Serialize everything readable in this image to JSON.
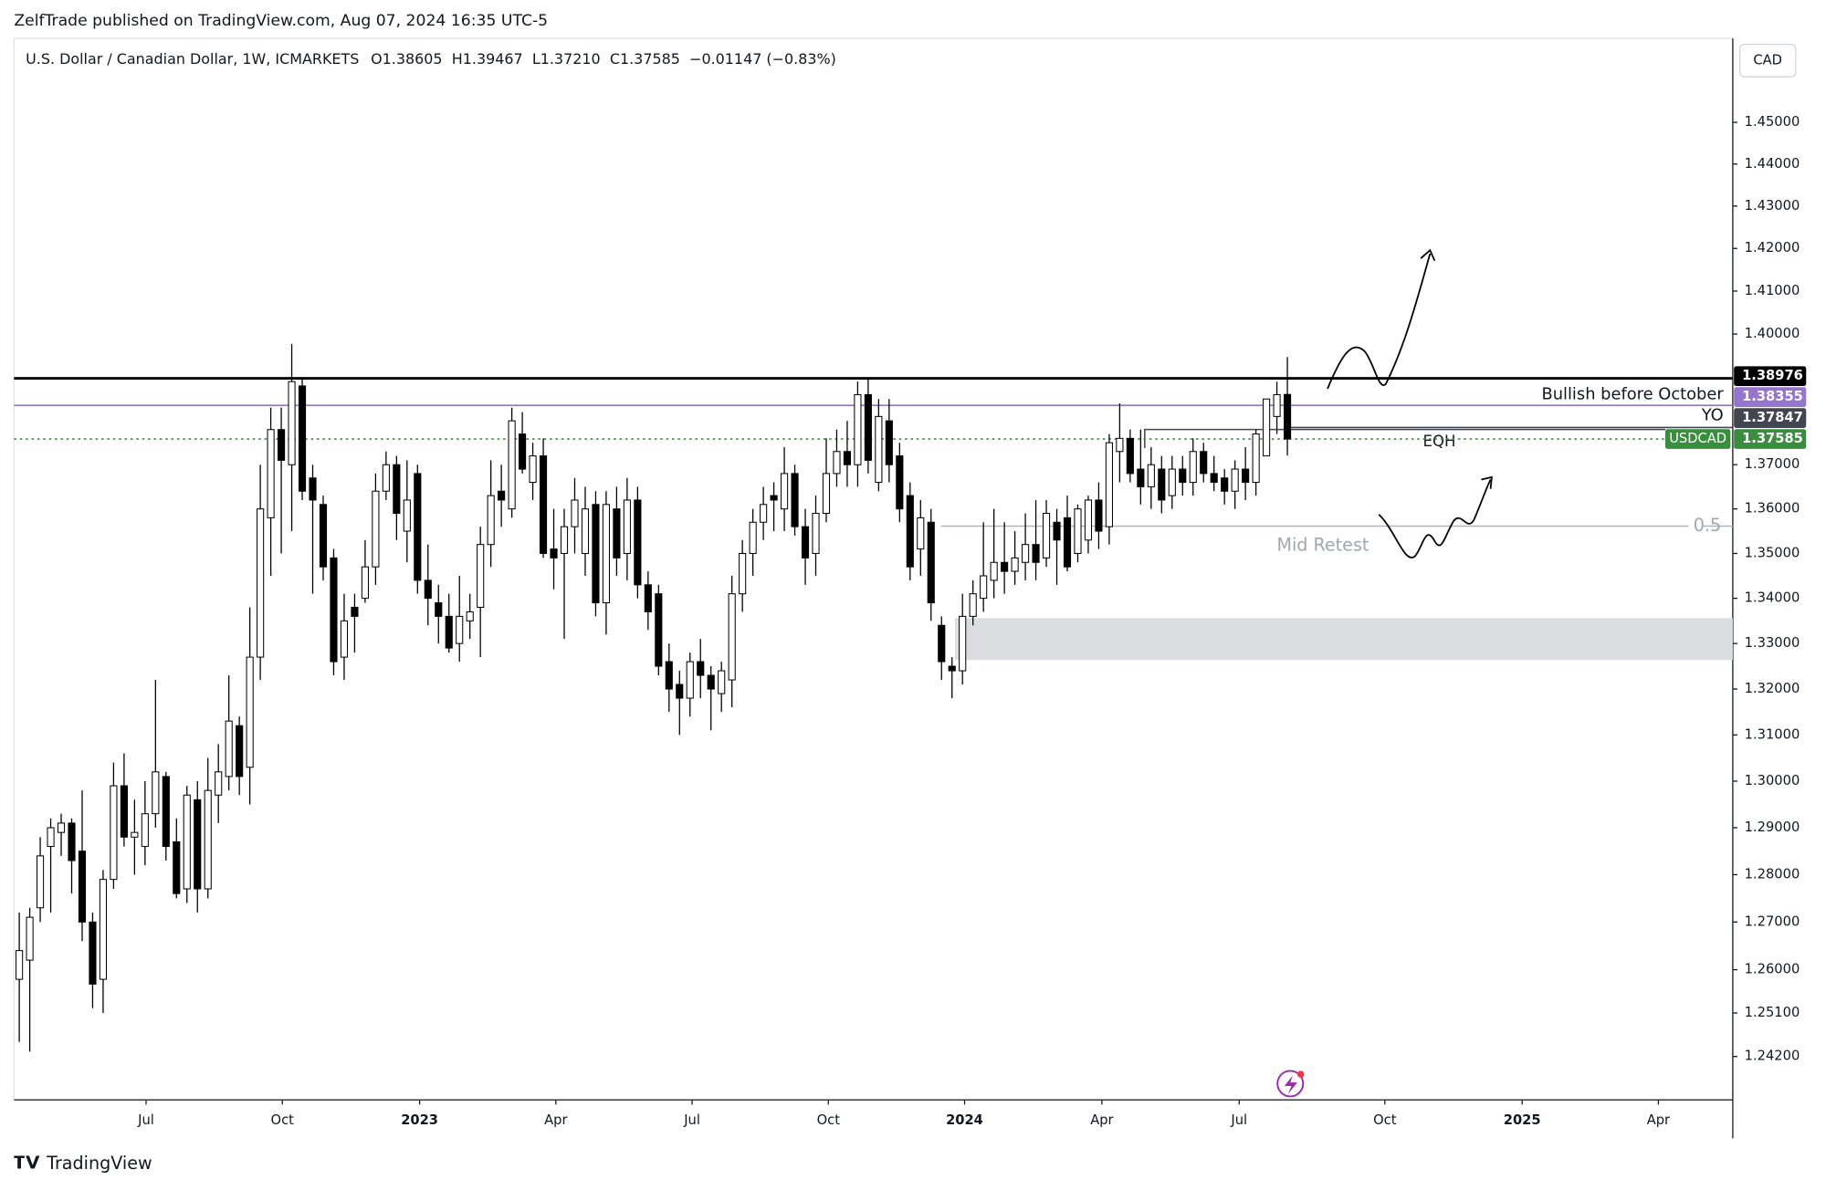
{
  "header": {
    "publisher": "ZelfTrade published on TradingView.com, Aug 07, 2024 16:35 UTC-5",
    "brand": "TradingView"
  },
  "chart_data": {
    "type": "candlestick",
    "legend": {
      "symbol": "U.S. Dollar / Canadian Dollar, 1W, ICMARKETS",
      "open": "O1.38605",
      "high": "H1.39467",
      "low": "L1.37210",
      "close": "C1.37585",
      "change": "−0.01147 (−0.83%)"
    },
    "currency": "CAD",
    "up_color": "#ffffff",
    "down_color": "#000000",
    "log_scale": true,
    "open": [
      1.258,
      1.262,
      1.273,
      1.286,
      1.289,
      1.291,
      1.285,
      1.27,
      1.258,
      1.279,
      1.299,
      1.288,
      1.286,
      1.293,
      1.301,
      1.287,
      1.277,
      1.296,
      1.277,
      1.297,
      1.301,
      1.312,
      1.303,
      1.327,
      1.358,
      1.378,
      1.37,
      1.388,
      1.367,
      1.361,
      1.349,
      1.327,
      1.338,
      1.34,
      1.347,
      1.364,
      1.37,
      1.355,
      1.368,
      1.344,
      1.339,
      1.336,
      1.33,
      1.335,
      1.338,
      1.352,
      1.364,
      1.36,
      1.377,
      1.366,
      1.372,
      1.351,
      1.35,
      1.356,
      1.35,
      1.361,
      1.339,
      1.36,
      1.35,
      1.362,
      1.343,
      1.341,
      1.326,
      1.321,
      1.318,
      1.326,
      1.323,
      1.319,
      1.322,
      1.341,
      1.35,
      1.357,
      1.363,
      1.36,
      1.368,
      1.356,
      1.35,
      1.359,
      1.368,
      1.373,
      1.37,
      1.386,
      1.366,
      1.38,
      1.372,
      1.363,
      1.351,
      1.357,
      1.334,
      1.325,
      1.324,
      1.336,
      1.34,
      1.344,
      1.348,
      1.346,
      1.348,
      1.352,
      1.349,
      1.357,
      1.358,
      1.35,
      1.353,
      1.362,
      1.356,
      1.373,
      1.376,
      1.369,
      1.365,
      1.369,
      1.363,
      1.369,
      1.366,
      1.373,
      1.368,
      1.367,
      1.364,
      1.369,
      1.366,
      1.372,
      1.381,
      1.38605
    ],
    "high": [
      1.272,
      1.273,
      1.288,
      1.292,
      1.293,
      1.292,
      1.298,
      1.272,
      1.281,
      1.304,
      1.306,
      1.296,
      1.3,
      1.322,
      1.302,
      1.292,
      1.299,
      1.3,
      1.305,
      1.308,
      1.323,
      1.314,
      1.338,
      1.37,
      1.383,
      1.383,
      1.3977,
      1.39,
      1.37,
      1.363,
      1.351,
      1.341,
      1.341,
      1.353,
      1.368,
      1.373,
      1.372,
      1.371,
      1.37,
      1.352,
      1.343,
      1.341,
      1.345,
      1.341,
      1.356,
      1.371,
      1.37,
      1.383,
      1.382,
      1.375,
      1.376,
      1.36,
      1.36,
      1.367,
      1.365,
      1.364,
      1.364,
      1.365,
      1.367,
      1.365,
      1.346,
      1.343,
      1.33,
      1.324,
      1.328,
      1.331,
      1.325,
      1.326,
      1.345,
      1.353,
      1.36,
      1.365,
      1.366,
      1.374,
      1.37,
      1.36,
      1.363,
      1.376,
      1.378,
      1.38,
      1.389,
      1.3898,
      1.385,
      1.385,
      1.375,
      1.366,
      1.362,
      1.36,
      1.336,
      1.327,
      1.341,
      1.344,
      1.357,
      1.36,
      1.357,
      1.355,
      1.359,
      1.362,
      1.362,
      1.36,
      1.363,
      1.361,
      1.363,
      1.366,
      1.377,
      1.384,
      1.378,
      1.378,
      1.374,
      1.372,
      1.372,
      1.372,
      1.376,
      1.375,
      1.372,
      1.369,
      1.371,
      1.374,
      1.378,
      1.385,
      1.389,
      1.39467
    ],
    "low": [
      1.245,
      1.243,
      1.27,
      1.272,
      1.284,
      1.276,
      1.266,
      1.252,
      1.251,
      1.277,
      1.286,
      1.28,
      1.282,
      1.29,
      1.283,
      1.275,
      1.274,
      1.272,
      1.275,
      1.291,
      1.298,
      1.297,
      1.295,
      1.322,
      1.345,
      1.35,
      1.355,
      1.362,
      1.341,
      1.344,
      1.323,
      1.322,
      1.328,
      1.339,
      1.343,
      1.362,
      1.353,
      1.348,
      1.341,
      1.334,
      1.33,
      1.328,
      1.326,
      1.331,
      1.327,
      1.347,
      1.356,
      1.358,
      1.368,
      1.362,
      1.349,
      1.342,
      1.331,
      1.35,
      1.345,
      1.336,
      1.332,
      1.345,
      1.344,
      1.34,
      1.333,
      1.323,
      1.315,
      1.31,
      1.314,
      1.318,
      1.311,
      1.315,
      1.316,
      1.337,
      1.345,
      1.353,
      1.355,
      1.355,
      1.354,
      1.343,
      1.345,
      1.357,
      1.365,
      1.365,
      1.365,
      1.368,
      1.364,
      1.366,
      1.357,
      1.344,
      1.345,
      1.335,
      1.322,
      1.318,
      1.321,
      1.334,
      1.337,
      1.34,
      1.341,
      1.343,
      1.344,
      1.344,
      1.347,
      1.343,
      1.346,
      1.348,
      1.35,
      1.351,
      1.352,
      1.366,
      1.366,
      1.361,
      1.36,
      1.359,
      1.36,
      1.363,
      1.363,
      1.366,
      1.364,
      1.361,
      1.36,
      1.362,
      1.363,
      1.373,
      1.377,
      1.3721
    ],
    "close": [
      1.264,
      1.271,
      1.284,
      1.29,
      1.291,
      1.283,
      1.27,
      1.257,
      1.279,
      1.299,
      1.288,
      1.289,
      1.293,
      1.302,
      1.286,
      1.276,
      1.297,
      1.277,
      1.298,
      1.302,
      1.313,
      1.301,
      1.327,
      1.36,
      1.378,
      1.371,
      1.389,
      1.364,
      1.362,
      1.347,
      1.326,
      1.335,
      1.336,
      1.347,
      1.364,
      1.37,
      1.359,
      1.362,
      1.344,
      1.34,
      1.336,
      1.329,
      1.336,
      1.337,
      1.352,
      1.363,
      1.362,
      1.38,
      1.369,
      1.372,
      1.35,
      1.349,
      1.356,
      1.362,
      1.36,
      1.339,
      1.361,
      1.349,
      1.362,
      1.343,
      1.337,
      1.325,
      1.32,
      1.318,
      1.326,
      1.323,
      1.32,
      1.324,
      1.341,
      1.35,
      1.357,
      1.361,
      1.362,
      1.368,
      1.356,
      1.349,
      1.359,
      1.368,
      1.373,
      1.37,
      1.386,
      1.371,
      1.381,
      1.37,
      1.36,
      1.347,
      1.358,
      1.339,
      1.326,
      1.324,
      1.336,
      1.341,
      1.345,
      1.348,
      1.346,
      1.349,
      1.352,
      1.348,
      1.359,
      1.353,
      1.347,
      1.36,
      1.362,
      1.355,
      1.375,
      1.376,
      1.368,
      1.365,
      1.37,
      1.362,
      1.369,
      1.366,
      1.373,
      1.368,
      1.366,
      1.364,
      1.369,
      1.366,
      1.377,
      1.385,
      1.386,
      1.37585
    ],
    "xlim": [
      -0.5,
      163.5
    ],
    "xticks": [
      {
        "value": 12.1,
        "label": "Jul"
      },
      {
        "value": 25.1,
        "label": "Oct"
      },
      {
        "value": 38.2,
        "label": "2023"
      },
      {
        "value": 51.2,
        "label": "Apr"
      },
      {
        "value": 64.2,
        "label": "Jul"
      },
      {
        "value": 77.2,
        "label": "Oct"
      },
      {
        "value": 90.2,
        "label": "2024"
      },
      {
        "value": 103.3,
        "label": "Apr"
      },
      {
        "value": 116.4,
        "label": "Jul"
      },
      {
        "value": 130.3,
        "label": "Oct"
      },
      {
        "value": 143.4,
        "label": "2025"
      },
      {
        "value": 156.4,
        "label": "Apr"
      }
    ],
    "ylim": [
      1.2331,
      1.4703
    ],
    "yticks": [
      {
        "value": 1.242,
        "label": "1.24200"
      },
      {
        "value": 1.251,
        "label": "1.25100"
      },
      {
        "value": 1.26,
        "label": "1.26000"
      },
      {
        "value": 1.27,
        "label": "1.27000"
      },
      {
        "value": 1.28,
        "label": "1.28000"
      },
      {
        "value": 1.29,
        "label": "1.29000"
      },
      {
        "value": 1.3,
        "label": "1.30000"
      },
      {
        "value": 1.31,
        "label": "1.31000"
      },
      {
        "value": 1.32,
        "label": "1.32000"
      },
      {
        "value": 1.33,
        "label": "1.33000"
      },
      {
        "value": 1.34,
        "label": "1.34000"
      },
      {
        "value": 1.35,
        "label": "1.35000"
      },
      {
        "value": 1.36,
        "label": "1.36000"
      },
      {
        "value": 1.37,
        "label": "1.37000"
      },
      {
        "value": 1.4,
        "label": "1.40000"
      },
      {
        "value": 1.41,
        "label": "1.41000"
      },
      {
        "value": 1.42,
        "label": "1.42000"
      },
      {
        "value": 1.43,
        "label": "1.43000"
      },
      {
        "value": 1.44,
        "label": "1.44000"
      },
      {
        "value": 1.45,
        "label": "1.45000"
      }
    ],
    "levels": [
      {
        "value": 1.38976,
        "label": "1.38976",
        "color": "#000000"
      },
      {
        "value": 1.38355,
        "label": "1.38355",
        "color": "#9575cd",
        "name": "Bullish before October"
      },
      {
        "value": 1.37847,
        "label": "1.37847",
        "color": "#434651",
        "name": "YO"
      },
      {
        "value": 1.37585,
        "label": "1.37585",
        "color": "#388e3c",
        "name": "USDCAD",
        "name_box": true
      }
    ],
    "annotations": {
      "eqh": "EQH",
      "mid_retest": "Mid Retest",
      "fib": "0.5"
    }
  }
}
